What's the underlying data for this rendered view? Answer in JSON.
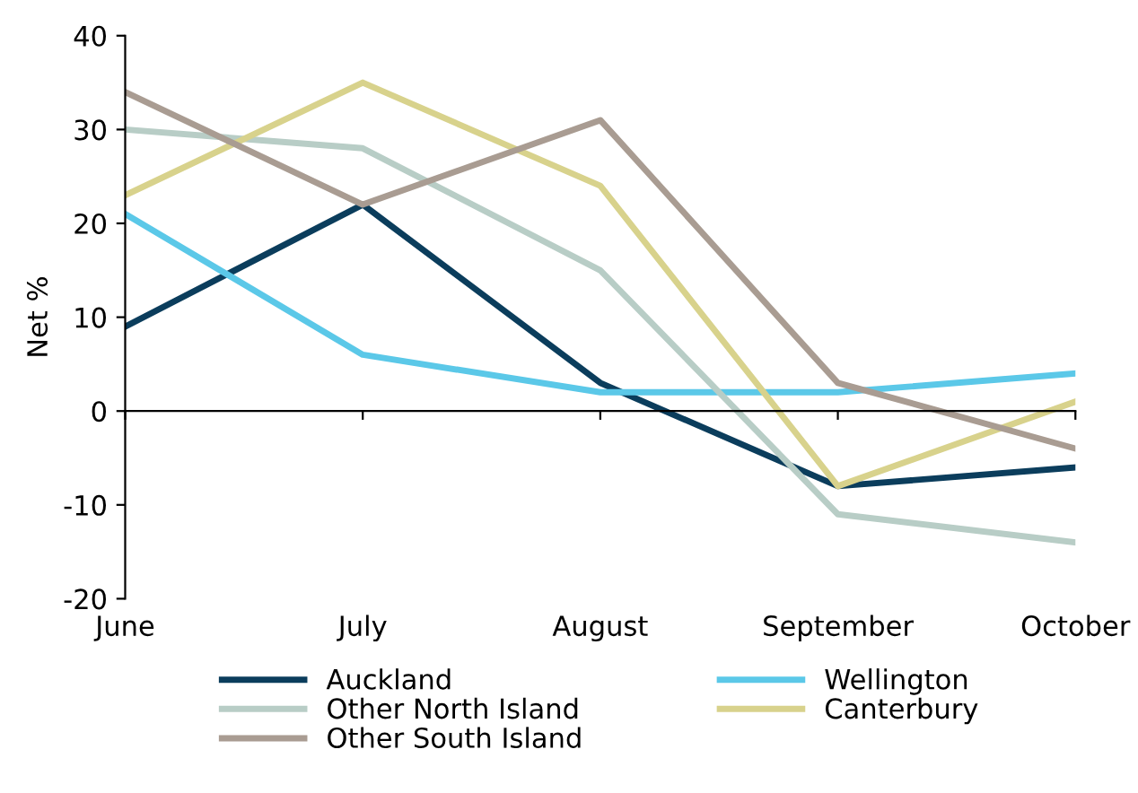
{
  "chart_data": {
    "type": "line",
    "ylabel": "Net %",
    "categories": [
      "June",
      "July",
      "August",
      "September",
      "October"
    ],
    "series": [
      {
        "name": "Auckland",
        "color": "#0b3d5c",
        "values": [
          9,
          22,
          3,
          -8,
          -6
        ]
      },
      {
        "name": "Wellington",
        "color": "#5bc8e8",
        "values": [
          21,
          6,
          2,
          2,
          4
        ]
      },
      {
        "name": "Other North Island",
        "color": "#b8cdc6",
        "values": [
          30,
          28,
          15,
          -11,
          -14
        ]
      },
      {
        "name": "Canterbury",
        "color": "#d8d28c",
        "values": [
          23,
          35,
          24,
          -8,
          1
        ]
      },
      {
        "name": "Other South Island",
        "color": "#a99c92",
        "values": [
          34,
          22,
          31,
          3,
          -4
        ]
      }
    ],
    "ylim": [
      -20,
      40
    ],
    "yticks": [
      -20,
      -10,
      0,
      10,
      20,
      30,
      40
    ],
    "legend": "bottom",
    "marker": "none",
    "line_style": "solid"
  }
}
